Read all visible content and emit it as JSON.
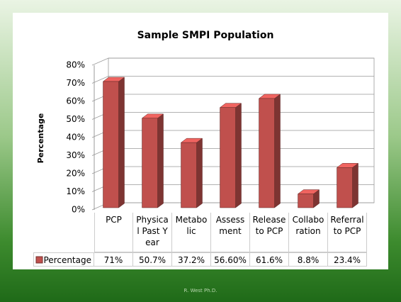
{
  "chart_data": {
    "type": "bar3d",
    "title": "Sample SMPI Population",
    "y_label": "Percentage",
    "categories": [
      "PCP",
      "Physical Past Year",
      "Metabolic",
      "Assessment",
      "Release to PCP",
      "Collaboration",
      "Referral to PCP"
    ],
    "series": [
      {
        "name": "Percentage",
        "color": "#c0504d",
        "values": [
          71,
          50.7,
          37.2,
          56.6,
          61.6,
          8.8,
          23.4
        ],
        "value_labels": [
          "71%",
          "50.7%",
          "37.2%",
          "56.60%",
          "61.6%",
          "8.8%",
          "23.4%"
        ]
      }
    ],
    "ylim": [
      0,
      80
    ],
    "yticks": [
      {
        "value": 0,
        "label": "0%"
      },
      {
        "value": 10,
        "label": "10%"
      },
      {
        "value": 20,
        "label": "20%"
      },
      {
        "value": 30,
        "label": "30%"
      },
      {
        "value": 40,
        "label": "40%"
      },
      {
        "value": 50,
        "label": "50%"
      },
      {
        "value": 60,
        "label": "60%"
      },
      {
        "value": 70,
        "label": "70%"
      },
      {
        "value": 80,
        "label": "80%"
      }
    ],
    "grid": true,
    "data_table": true
  },
  "footer": "R. West Ph.D."
}
